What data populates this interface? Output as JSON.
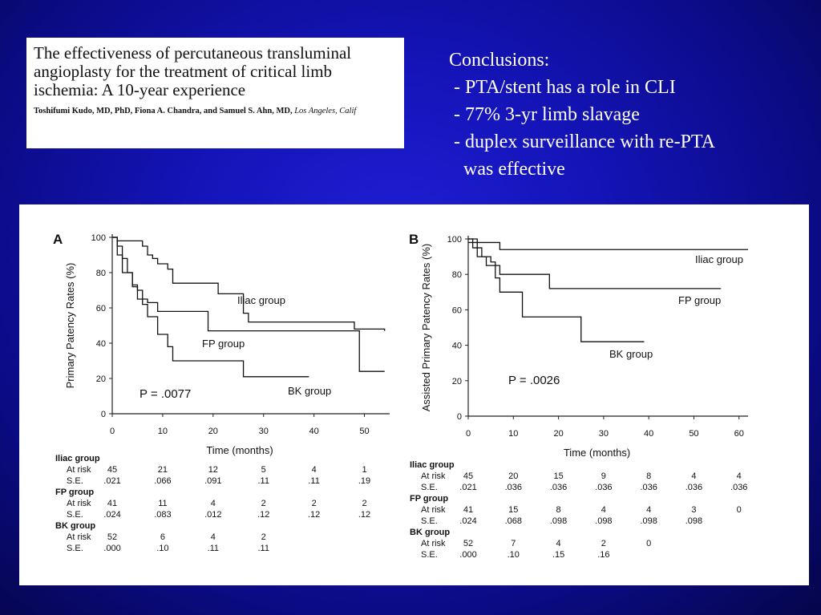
{
  "citation": {
    "title": "The effectiveness of percutaneous transluminal angioplasty for the treatment of critical limb ischemia: A 10-year experience",
    "authors": "Toshifumi Kudo, MD, PhD, Fiona A. Chandra, and Samuel S. Ahn, MD, ",
    "location": "Los Angeles, Calif"
  },
  "conclusions": {
    "heading": "Conclusions:",
    "items": [
      " - PTA/stent has a role in CLI",
      " - 77% 3-yr limb slavage",
      " - duplex surveillance with re-PTA",
      "   was effective"
    ]
  },
  "chart_data": [
    {
      "type": "line",
      "panel_label": "A",
      "xlabel": "Time (months)",
      "ylabel": "Primary Patency Rates (%)",
      "xlim": [
        0,
        55
      ],
      "ylim": [
        0,
        100
      ],
      "xticks": [
        0,
        10,
        20,
        30,
        40,
        50
      ],
      "yticks": [
        0,
        20,
        40,
        60,
        80,
        100
      ],
      "annotation": "P = .0077",
      "series": [
        {
          "name": "Iliac group",
          "style": "solid-then-dashed",
          "x": [
            0,
            1,
            5,
            6,
            7,
            8,
            9,
            11,
            12,
            20,
            21,
            25,
            26,
            27,
            48,
            54
          ],
          "y": [
            100,
            98,
            98,
            95,
            90,
            88,
            85,
            82,
            74,
            74,
            68,
            68,
            57,
            52,
            48,
            47
          ]
        },
        {
          "name": "FP group",
          "style": "solid-then-dotted",
          "x": [
            0,
            1,
            2,
            3,
            4,
            5,
            6,
            7,
            9,
            18,
            19,
            48,
            49,
            54
          ],
          "y": [
            100,
            95,
            88,
            80,
            73,
            70,
            65,
            63,
            58,
            58,
            47,
            47,
            24,
            24
          ]
        },
        {
          "name": "BK group",
          "style": "solid-then-dotted",
          "x": [
            0,
            1,
            2,
            4,
            5,
            6,
            7,
            9,
            11,
            12,
            25,
            26,
            39
          ],
          "y": [
            100,
            90,
            80,
            72,
            65,
            62,
            55,
            45,
            38,
            30,
            30,
            21,
            21
          ]
        }
      ]
    },
    {
      "type": "line",
      "panel_label": "B",
      "xlabel": "Time (months)",
      "ylabel": "Assisted Primary Patency Rates (%)",
      "xlim": [
        0,
        62
      ],
      "ylim": [
        0,
        100
      ],
      "xticks": [
        0,
        10,
        20,
        30,
        40,
        50,
        60
      ],
      "yticks": [
        0,
        20,
        40,
        60,
        80,
        100
      ],
      "annotation": "P = .0026",
      "series": [
        {
          "name": "Iliac group",
          "style": "solid",
          "x": [
            0,
            7,
            62
          ],
          "y": [
            98,
            94,
            94
          ]
        },
        {
          "name": "FP group",
          "style": "solid",
          "x": [
            0,
            1,
            3,
            5,
            6,
            7,
            18,
            56
          ],
          "y": [
            100,
            95,
            90,
            87,
            85,
            80,
            72,
            72
          ]
        },
        {
          "name": "BK group",
          "style": "solid-then-dotted",
          "x": [
            0,
            2,
            4,
            6,
            7,
            12,
            25,
            39
          ],
          "y": [
            100,
            90,
            85,
            78,
            70,
            56,
            42,
            42
          ]
        }
      ]
    }
  ],
  "risk_tables": [
    {
      "groups": [
        {
          "name": "Iliac group",
          "at_risk": [
            "45",
            "21",
            "12",
            "5",
            "4",
            "1"
          ],
          "se": [
            ".021",
            ".066",
            ".091",
            ".11",
            ".11",
            ".19"
          ]
        },
        {
          "name": "FP group",
          "at_risk": [
            "41",
            "11",
            "4",
            "2",
            "2",
            "2"
          ],
          "se": [
            ".024",
            ".083",
            ".012",
            ".12",
            ".12",
            ".12"
          ]
        },
        {
          "name": "BK group",
          "at_risk": [
            "52",
            "6",
            "4",
            "2"
          ],
          "se": [
            ".000",
            ".10",
            ".11",
            ".11"
          ]
        }
      ],
      "row_labels": [
        "At risk",
        "S.E."
      ]
    },
    {
      "groups": [
        {
          "name": "Iliac group",
          "at_risk": [
            "45",
            "20",
            "15",
            "9",
            "8",
            "4",
            "4"
          ],
          "se": [
            ".021",
            ".036",
            ".036",
            ".036",
            ".036",
            ".036",
            ".036"
          ]
        },
        {
          "name": "FP group",
          "at_risk": [
            "41",
            "15",
            "8",
            "4",
            "4",
            "3",
            "0"
          ],
          "se": [
            ".024",
            ".068",
            ".098",
            ".098",
            ".098",
            ".098"
          ]
        },
        {
          "name": "BK group",
          "at_risk": [
            "52",
            "7",
            "4",
            "2",
            "0"
          ],
          "se": [
            ".000",
            ".10",
            ".15",
            ".16"
          ]
        }
      ],
      "row_labels": [
        "At risk",
        "S.E."
      ]
    }
  ]
}
